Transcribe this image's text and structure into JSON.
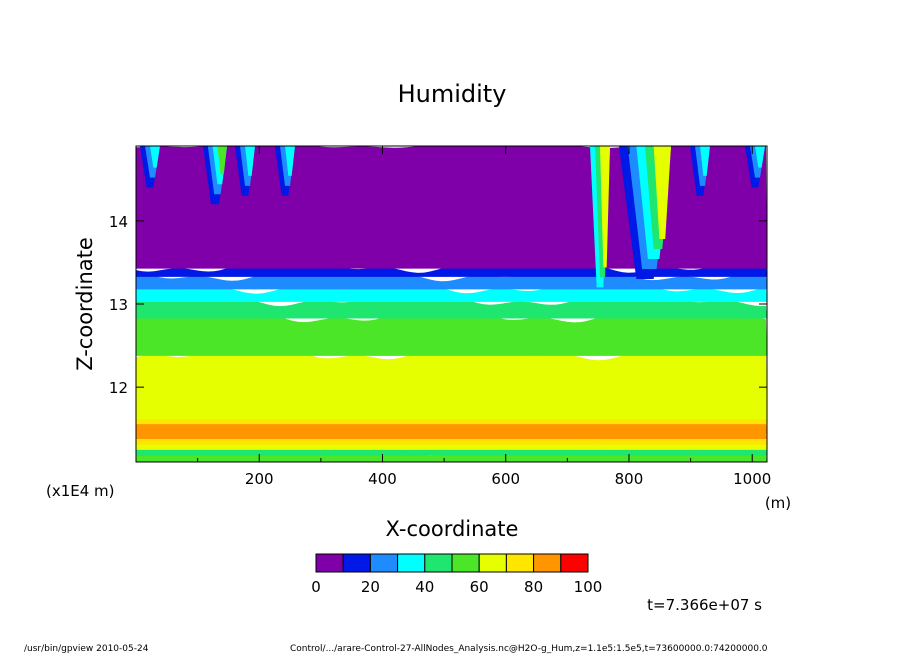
{
  "chart_data": {
    "type": "heatmap",
    "title": "Humidity",
    "xlabel": "X-coordinate",
    "ylabel": "Z-coordinate",
    "x_unit": "(m)",
    "y_unit": "(x1E4 m)",
    "xlim": [
      0,
      1024
    ],
    "ylim": [
      11.1,
      14.9
    ],
    "x_ticks": [
      200,
      400,
      600,
      800,
      1000
    ],
    "y_ticks": [
      12,
      13,
      14
    ],
    "x_tick_labels": [
      "200",
      "400",
      "600",
      "800",
      "1000"
    ],
    "y_tick_labels": [
      "12",
      "13",
      "14"
    ],
    "colorbar": {
      "levels": [
        0,
        10,
        20,
        30,
        40,
        50,
        60,
        70,
        80,
        90,
        100
      ],
      "tick_labels": [
        "0",
        "20",
        "40",
        "60",
        "80",
        "100"
      ],
      "colors": [
        "#7f00a8",
        "#0019e6",
        "#1e8cff",
        "#00ffff",
        "#1ee66e",
        "#4be628",
        "#e6ff00",
        "#ffe600",
        "#ff9600",
        "#ff0000",
        "#ff9696"
      ]
    },
    "layers": [
      {
        "z_from": 11.1,
        "z_to": 11.2,
        "value": 55
      },
      {
        "z_from": 11.2,
        "z_to": 11.27,
        "value": 45
      },
      {
        "z_from": 11.27,
        "z_to": 11.33,
        "value": 65
      },
      {
        "z_from": 11.33,
        "z_to": 11.4,
        "value": 75
      },
      {
        "z_from": 11.4,
        "z_to": 11.46,
        "value": 85
      },
      {
        "z_from": 11.46,
        "z_to": 11.58,
        "value": 85
      },
      {
        "z_from": 11.58,
        "z_to": 11.64,
        "value": 75
      },
      {
        "z_from": 11.64,
        "z_to": 11.72,
        "value": 65
      },
      {
        "z_from": 11.72,
        "z_to": 12.4,
        "value": 65
      },
      {
        "z_from": 12.4,
        "z_to": 12.85,
        "value": 55
      },
      {
        "z_from": 12.85,
        "z_to": 13.05,
        "value": 45
      },
      {
        "z_from": 13.05,
        "z_to": 13.2,
        "value": 35
      },
      {
        "z_from": 13.2,
        "z_to": 13.35,
        "value": 25
      },
      {
        "z_from": 13.35,
        "z_to": 13.45,
        "value": 15
      },
      {
        "z_from": 13.45,
        "z_to": 14.9,
        "value": 5
      }
    ],
    "annotation": "t=7.366e+07 s"
  },
  "footer": {
    "left": "/usr/bin/gpview   2010-05-24",
    "right": "Control/.../arare-Control-27-AllNodes_Analysis.nc@H2O-g_Hum,z=1.1e5:1.5e5,t=73600000.0:74200000.0"
  }
}
